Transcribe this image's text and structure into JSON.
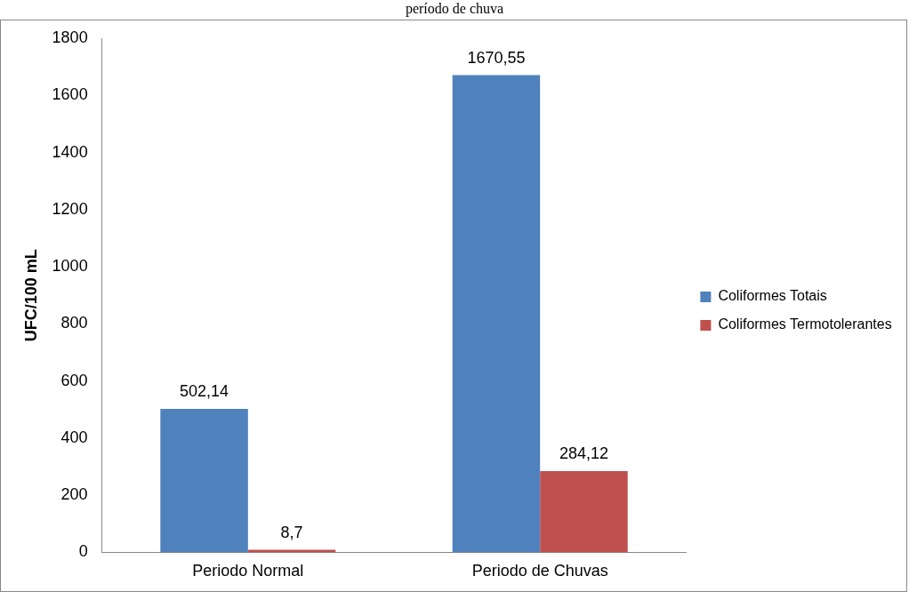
{
  "chart_data": {
    "type": "bar",
    "title": "período de chuva",
    "ylabel": "UFC/100 mL",
    "categories": [
      "Periodo Normal",
      "Periodo de Chuvas"
    ],
    "series": [
      {
        "name": "Coliformes Totais",
        "color": "#4f81bd",
        "values": [
          502.14,
          1670.55
        ],
        "value_labels": [
          "502,14",
          "1670,55"
        ]
      },
      {
        "name": "Coliformes Termotolerantes",
        "color": "#c0504d",
        "values": [
          8.7,
          284.12
        ],
        "value_labels": [
          "8,7",
          "284,12"
        ]
      }
    ],
    "ylim": [
      0,
      1800
    ],
    "yticks": [
      0,
      200,
      400,
      600,
      800,
      1000,
      1200,
      1400,
      1600,
      1800
    ],
    "grid": false,
    "legend": "right"
  }
}
